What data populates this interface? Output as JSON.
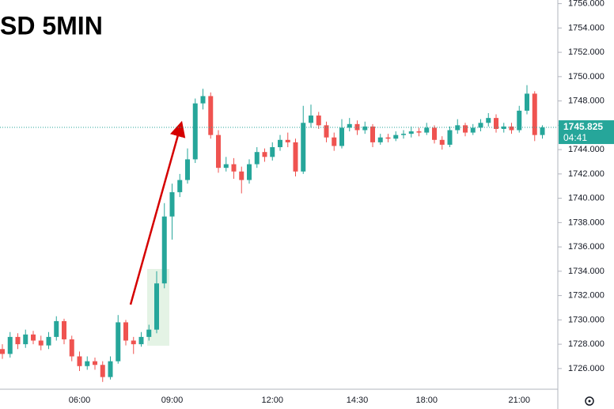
{
  "chart_data": {
    "type": "candlestick",
    "title": "SD 5MIN",
    "categories": [
      null,
      null,
      null,
      null,
      null,
      null,
      null,
      null,
      null,
      null,
      "06:00",
      null,
      null,
      null,
      null,
      null,
      null,
      null,
      null,
      null,
      null,
      null,
      "09:00",
      null,
      null,
      null,
      null,
      null,
      null,
      null,
      null,
      null,
      null,
      null,
      null,
      "12:00",
      null,
      null,
      null,
      null,
      null,
      null,
      null,
      null,
      null,
      null,
      "14:30",
      null,
      null,
      null,
      null,
      null,
      null,
      null,
      null,
      "18:00",
      null,
      null,
      null,
      null,
      null,
      null,
      null,
      null,
      null,
      null,
      null,
      "21:00",
      null,
      null,
      null
    ],
    "series": [
      {
        "open": [
          1727.6,
          1727.2,
          1728.6,
          1728.0,
          1728.8,
          1728.3,
          1727.9,
          1728.6,
          1729.9,
          1728.4,
          1727.0,
          1726.2,
          1726.6,
          1726.3,
          1725.3,
          1726.6,
          1729.8,
          1728.3,
          1728.0,
          1728.6,
          1729.2,
          1733.0,
          1738.5,
          1740.5,
          1741.5,
          1743.2,
          1747.8,
          1748.4,
          1745.2,
          1742.5,
          1742.8,
          1742.2,
          1741.5,
          1742.8,
          1743.8,
          1743.4,
          1744.2,
          1744.8,
          1744.6,
          1742.2,
          1746.2,
          1746.8,
          1746.0,
          1745.0,
          1744.3,
          1745.8,
          1746.1,
          1745.6,
          1745.9,
          1744.6,
          1745.0,
          1744.9,
          1745.2,
          1745.3,
          1745.5,
          1745.4,
          1745.8,
          1744.8,
          1744.4,
          1745.6,
          1746.0,
          1745.4,
          1745.8,
          1746.2,
          1746.6,
          1745.7,
          1745.9,
          1745.6,
          1747.2,
          1748.6,
          1745.2
        ],
        "high": [
          1728.0,
          1729.0,
          1728.9,
          1729.2,
          1729.1,
          1728.7,
          1729.0,
          1730.3,
          1730.1,
          1728.7,
          1727.4,
          1727.0,
          1726.9,
          1726.6,
          1727.0,
          1730.4,
          1730.0,
          1728.6,
          1729.0,
          1729.6,
          1734.0,
          1739.6,
          1741.2,
          1742.0,
          1744.1,
          1748.2,
          1749.0,
          1748.7,
          1745.6,
          1743.4,
          1743.3,
          1742.6,
          1743.2,
          1744.2,
          1744.1,
          1744.6,
          1745.2,
          1745.4,
          1744.9,
          1747.6,
          1747.7,
          1747.1,
          1746.3,
          1745.4,
          1746.5,
          1746.6,
          1746.4,
          1746.3,
          1746.1,
          1745.3,
          1745.3,
          1745.5,
          1745.6,
          1745.9,
          1745.8,
          1746.2,
          1746.0,
          1745.1,
          1745.9,
          1746.5,
          1746.2,
          1746.1,
          1746.5,
          1747.0,
          1746.9,
          1746.2,
          1746.2,
          1747.6,
          1749.3,
          1748.8,
          1746.0
        ],
        "low": [
          1726.8,
          1726.9,
          1727.6,
          1727.7,
          1728.0,
          1727.5,
          1727.6,
          1728.3,
          1728.0,
          1726.6,
          1725.8,
          1725.9,
          1725.9,
          1724.9,
          1725.1,
          1726.4,
          1727.9,
          1727.2,
          1727.8,
          1728.3,
          1728.9,
          1732.6,
          1736.6,
          1740.1,
          1741.2,
          1742.9,
          1747.3,
          1744.9,
          1742.1,
          1742.2,
          1741.6,
          1740.4,
          1741.2,
          1742.5,
          1743.0,
          1743.1,
          1743.9,
          1744.2,
          1741.8,
          1742.0,
          1745.8,
          1745.7,
          1744.6,
          1743.9,
          1744.1,
          1745.5,
          1745.2,
          1745.3,
          1744.2,
          1744.4,
          1744.6,
          1744.7,
          1744.9,
          1745.0,
          1745.1,
          1745.2,
          1744.5,
          1744.0,
          1744.2,
          1745.3,
          1745.1,
          1745.2,
          1745.5,
          1745.9,
          1745.4,
          1745.4,
          1745.3,
          1745.4,
          1746.9,
          1744.7,
          1744.9
        ],
        "close": [
          1727.2,
          1728.6,
          1728.0,
          1728.8,
          1728.3,
          1727.9,
          1728.6,
          1729.9,
          1728.4,
          1727.0,
          1726.2,
          1726.6,
          1726.3,
          1725.3,
          1726.6,
          1729.8,
          1728.3,
          1728.0,
          1728.6,
          1729.2,
          1733.0,
          1738.5,
          1740.5,
          1741.5,
          1743.2,
          1747.8,
          1748.4,
          1745.2,
          1742.5,
          1742.8,
          1742.2,
          1741.5,
          1742.8,
          1743.8,
          1743.4,
          1744.2,
          1744.8,
          1744.6,
          1742.2,
          1746.2,
          1746.8,
          1746.0,
          1745.0,
          1744.3,
          1745.8,
          1746.1,
          1745.6,
          1745.9,
          1744.6,
          1745.0,
          1744.9,
          1745.2,
          1745.3,
          1745.5,
          1745.4,
          1745.8,
          1744.8,
          1744.4,
          1745.6,
          1746.0,
          1745.4,
          1745.8,
          1746.2,
          1746.6,
          1745.7,
          1745.9,
          1745.6,
          1747.2,
          1748.6,
          1745.2,
          1745.825
        ]
      }
    ],
    "up_color": "#26a69a",
    "down_color": "#ef5350",
    "ylim": [
      1724.3,
      1756.3
    ],
    "yticks": [
      {
        "value": 1726,
        "label": "1726.000"
      },
      {
        "value": 1728,
        "label": "1728.000"
      },
      {
        "value": 1730,
        "label": "1730.000"
      },
      {
        "value": 1732,
        "label": "1732.000"
      },
      {
        "value": 1734,
        "label": "1734.000"
      },
      {
        "value": 1736,
        "label": "1736.000"
      },
      {
        "value": 1738,
        "label": "1738.000"
      },
      {
        "value": 1740,
        "label": "1740.000"
      },
      {
        "value": 1742,
        "label": "1742.000"
      },
      {
        "value": 1744,
        "label": "1744.000"
      },
      {
        "value": 1746,
        "label": "1746.000"
      },
      {
        "value": 1748,
        "label": "1748.000"
      },
      {
        "value": 1750,
        "label": "1750.000"
      },
      {
        "value": 1752,
        "label": "1752.000"
      },
      {
        "value": 1754,
        "label": "1754.000"
      },
      {
        "value": 1756,
        "label": "1756.000"
      }
    ],
    "last_price": 1745.825,
    "countdown": "04:41"
  }
}
